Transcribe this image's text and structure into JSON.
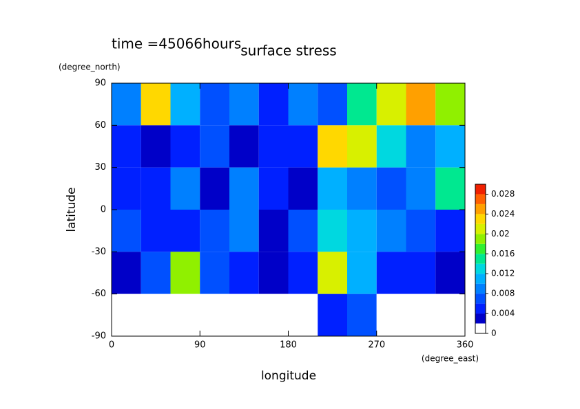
{
  "chart_data": {
    "type": "contour",
    "title": "surface stress",
    "subtitle": "time =45066hours",
    "xlabel": "longitude",
    "xunits": "(degree_east)",
    "ylabel": "latitude",
    "yunits": "(degree_north)",
    "x": [
      15,
      45,
      75,
      105,
      135,
      165,
      195,
      225,
      255,
      285,
      315,
      345
    ],
    "y": [
      75,
      45,
      15,
      -15,
      -45,
      -75
    ],
    "z": [
      [
        0.008,
        0.022,
        0.01,
        0.006,
        0.008,
        0.004,
        0.008,
        0.006,
        0.014,
        0.02,
        0.024,
        0.018
      ],
      [
        0.004,
        0.002,
        0.004,
        0.006,
        0.002,
        0.004,
        0.004,
        0.022,
        0.02,
        0.012,
        0.008,
        0.01
      ],
      [
        0.004,
        0.004,
        0.008,
        0.002,
        0.008,
        0.004,
        0.002,
        0.01,
        0.008,
        0.006,
        0.008,
        0.014
      ],
      [
        0.006,
        0.004,
        0.004,
        0.006,
        0.008,
        0.002,
        0.006,
        0.012,
        0.01,
        0.008,
        0.006,
        0.004
      ],
      [
        0.002,
        0.006,
        0.018,
        0.006,
        0.004,
        0.002,
        0.004,
        0.02,
        0.01,
        0.004,
        0.004,
        0.002
      ],
      [
        0,
        0,
        0,
        0,
        0,
        0,
        0,
        0.004,
        0.006,
        0,
        0,
        0
      ]
    ],
    "xlim": [
      0,
      360
    ],
    "xticks": [
      0,
      90,
      180,
      270,
      360
    ],
    "ylim": [
      -90,
      90
    ],
    "yticks": [
      -90,
      -60,
      -30,
      0,
      30,
      60,
      90
    ],
    "clim": [
      0,
      0.03
    ],
    "cticks": [
      0,
      0.004,
      0.008,
      0.012,
      0.016,
      0.02,
      0.024,
      0.028
    ],
    "colors": [
      "#ffffff",
      "#0000c8",
      "#0020ff",
      "#0050ff",
      "#0080ff",
      "#00b0ff",
      "#00d8e0",
      "#00e890",
      "#30f030",
      "#90f000",
      "#d8f000",
      "#ffd800",
      "#ffa000",
      "#ff6000",
      "#f02000"
    ]
  }
}
